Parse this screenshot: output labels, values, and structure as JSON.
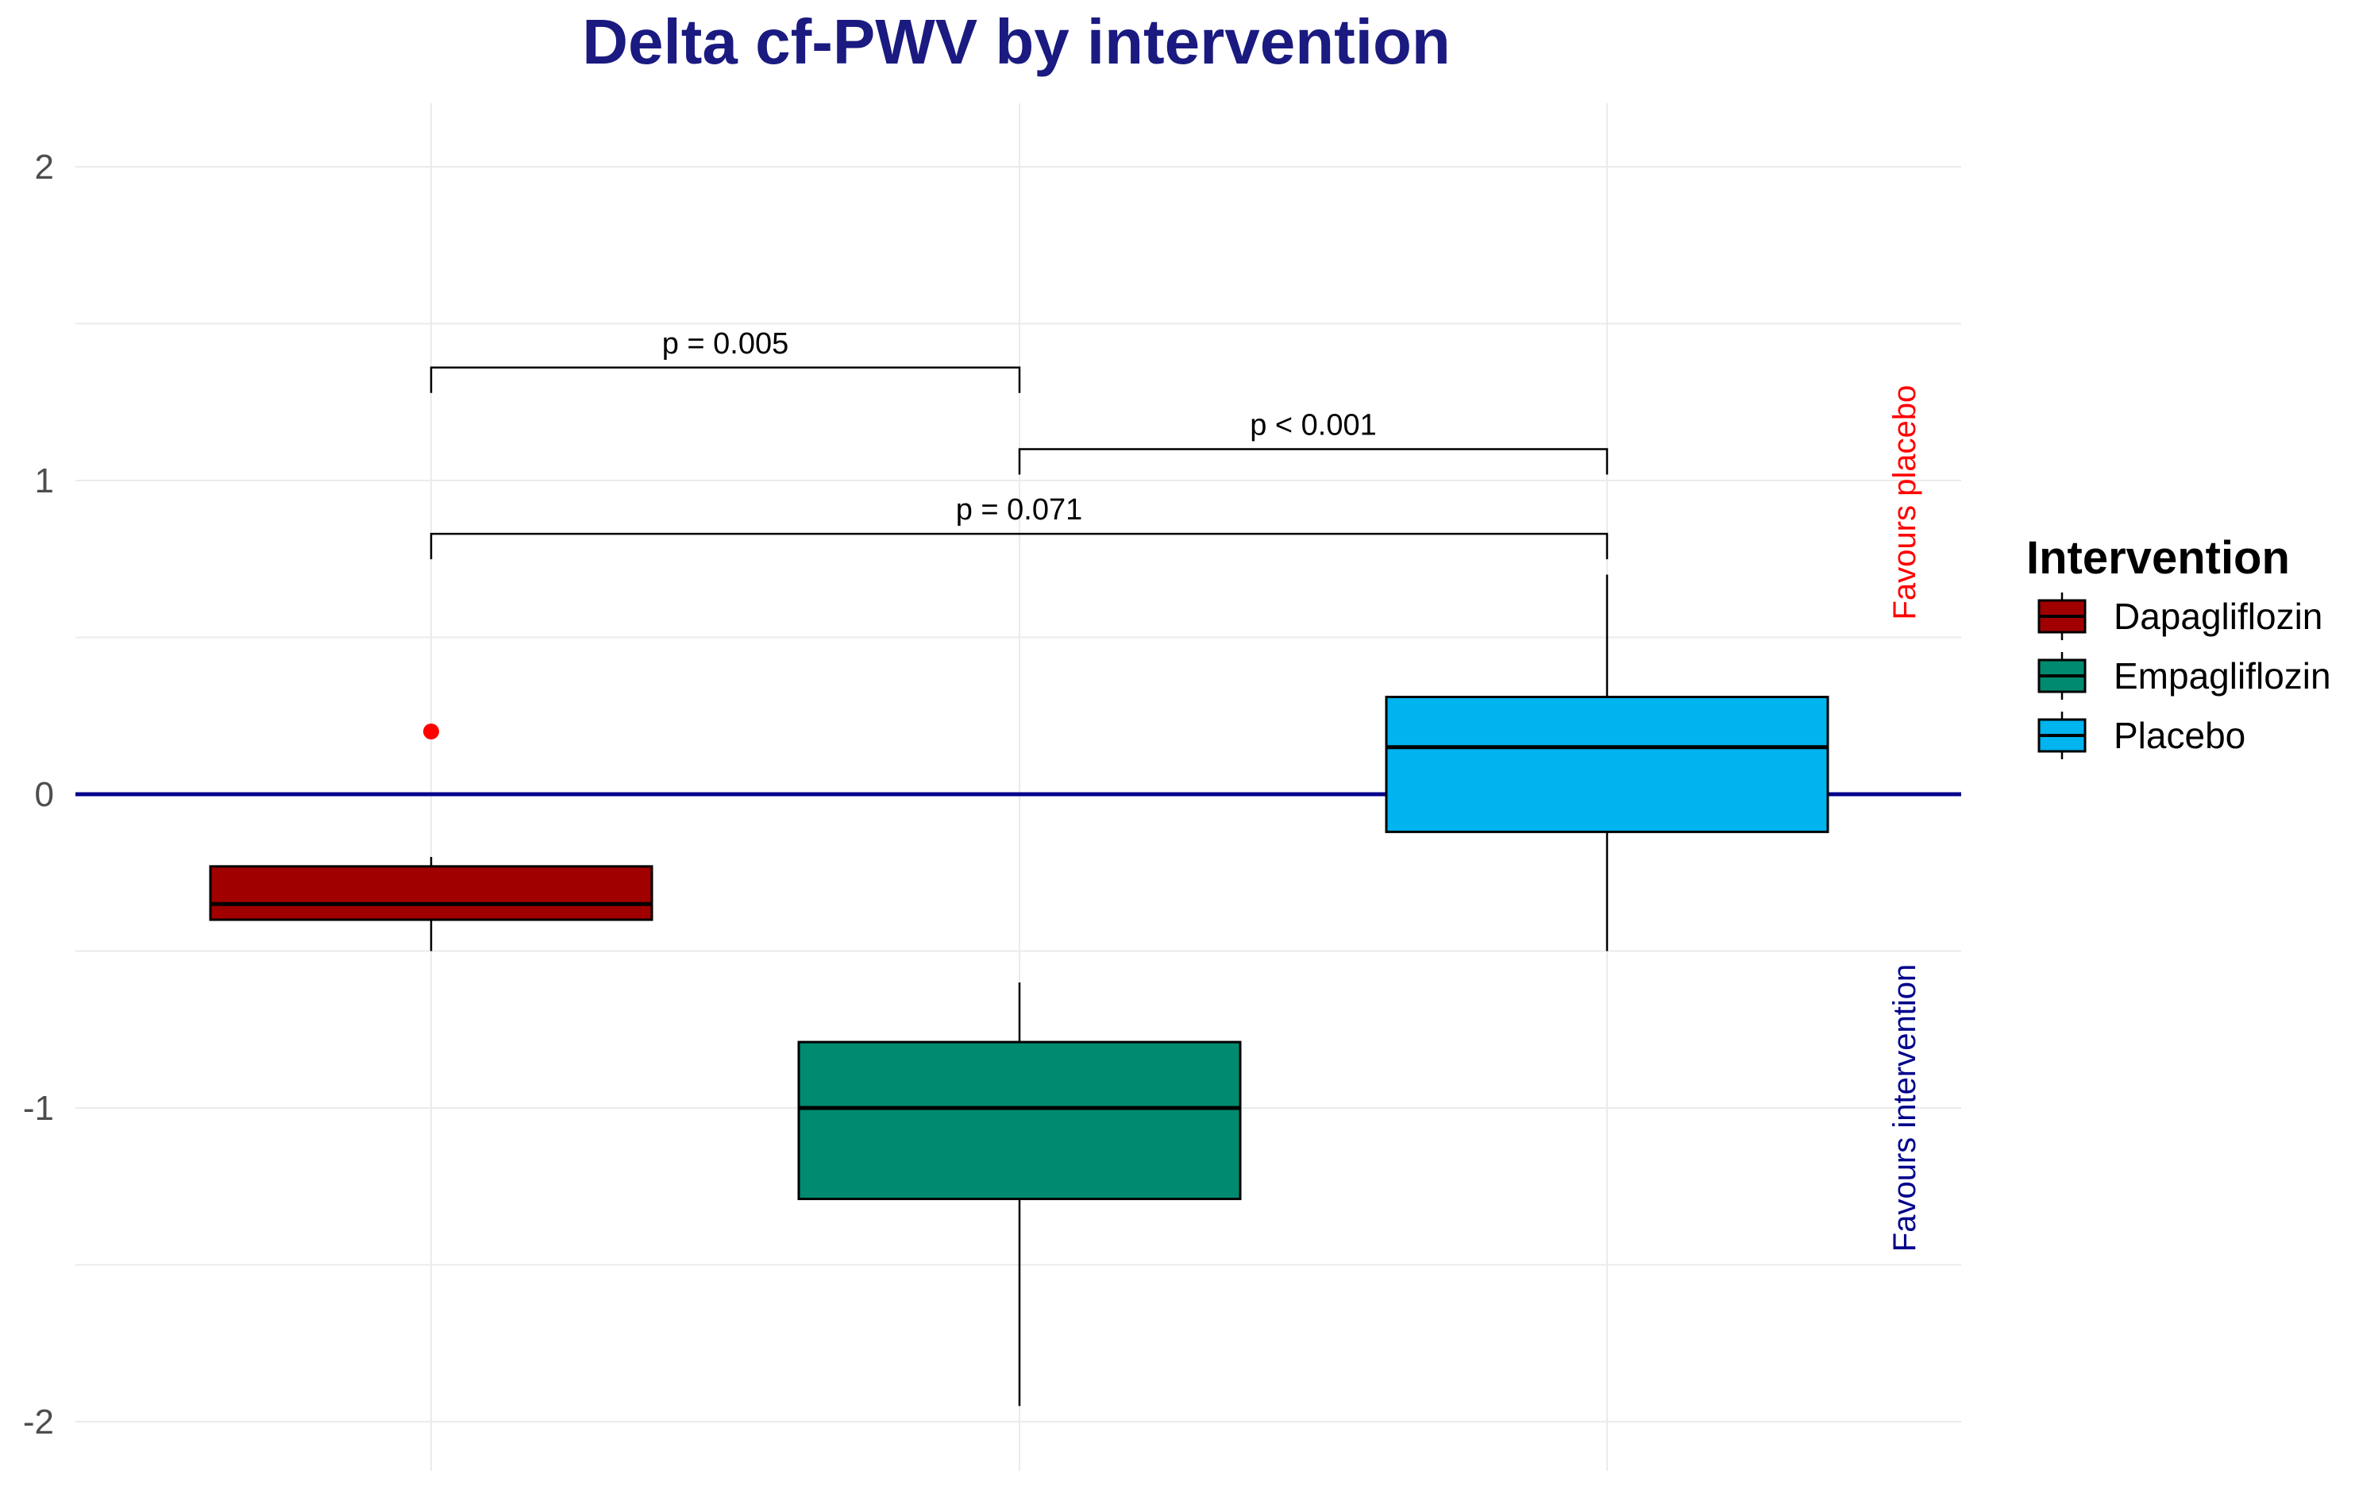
{
  "chart_data": {
    "type": "boxplot",
    "title": "Delta cf-PWV by intervention",
    "xlabel": "",
    "ylabel": "",
    "ylim": [
      -2.2,
      2.2
    ],
    "yticks": [
      {
        "value": 2,
        "label": "2"
      },
      {
        "value": 1,
        "label": "1"
      },
      {
        "value": 0,
        "label": "0"
      },
      {
        "value": -1,
        "label": "-1"
      },
      {
        "value": -2,
        "label": "-2"
      }
    ],
    "grid": true,
    "reference_line": {
      "y": 0,
      "color": "#00008b"
    },
    "categories": [
      "Dapagliflozin",
      "Empagliflozin",
      "Placebo"
    ],
    "series": [
      {
        "name": "Dapagliflozin",
        "color": "#a10000",
        "whisker_low": -0.5,
        "q1": -0.4,
        "median": -0.35,
        "q3": -0.23,
        "whisker_high": -0.2,
        "outliers": [
          0.2
        ],
        "outlier_color": "#ff0000"
      },
      {
        "name": "Empagliflozin",
        "color": "#008b70",
        "whisker_low": -1.95,
        "q1": -1.29,
        "median": -1.0,
        "q3": -0.79,
        "whisker_high": -0.6,
        "outliers": []
      },
      {
        "name": "Placebo",
        "color": "#00b4ef",
        "whisker_low": -0.5,
        "q1": -0.12,
        "median": 0.15,
        "q3": 0.31,
        "whisker_high": 0.7,
        "outliers": []
      }
    ],
    "comparisons": [
      {
        "from": 0,
        "to": 1,
        "y": 1.36,
        "label": "p = 0.005"
      },
      {
        "from": 1,
        "to": 2,
        "y": 1.1,
        "label": "p < 0.001"
      },
      {
        "from": 0,
        "to": 2,
        "y": 0.83,
        "label": "p = 0.071"
      }
    ],
    "side_labels": [
      {
        "text": "Favours placebo",
        "color": "#ff0000",
        "y_center": 0.93
      },
      {
        "text": "Favours intervention",
        "color": "#00008b",
        "y_center": -1.0
      }
    ],
    "legend": {
      "title": "Intervention",
      "position": "right"
    }
  }
}
